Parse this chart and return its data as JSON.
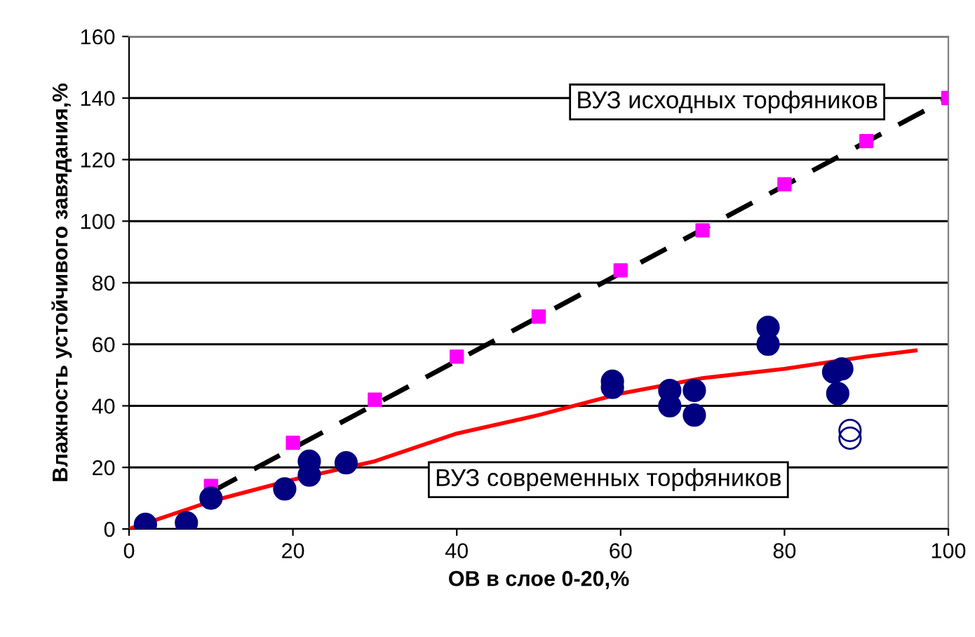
{
  "chart_data": {
    "type": "scatter",
    "xlabel": "ОВ в слое 0-20,%",
    "ylabel": "Влажность устойчивого завядания,%",
    "xlim": [
      0,
      100
    ],
    "ylim": [
      0,
      160
    ],
    "xticks": [
      0,
      20,
      40,
      60,
      80,
      100
    ],
    "yticks": [
      0,
      20,
      40,
      60,
      80,
      100,
      120,
      140,
      160
    ],
    "grid": "y",
    "annotations": [
      "ВУЗ исходных торфяников",
      "ВУЗ современных торфяников"
    ],
    "series": [
      {
        "type": "line",
        "color": "#000000",
        "line_style": "dashed",
        "marker": "none",
        "x": [
          10,
          100
        ],
        "values": [
          12,
          140
        ]
      },
      {
        "type": "line",
        "color": "#ff0000",
        "line_style": "solid",
        "marker": "none",
        "x": [
          0,
          10,
          20,
          30,
          40,
          50,
          60,
          70,
          80,
          90,
          96
        ],
        "values": [
          0,
          9,
          16,
          22,
          31,
          37,
          44,
          49,
          52,
          56,
          58
        ]
      },
      {
        "color": "#ff00ff",
        "marker": "square",
        "x": [
          10,
          20,
          30,
          40,
          50,
          60,
          70,
          80,
          90,
          100
        ],
        "values": [
          14,
          28,
          42,
          56,
          69,
          84,
          97,
          112,
          126,
          140
        ]
      },
      {
        "color": "#000080",
        "marker": "circle",
        "x": [
          2,
          7,
          10,
          19,
          22,
          22,
          26.5,
          59,
          59,
          66,
          66,
          69,
          69,
          78,
          78,
          87,
          86,
          86.5
        ],
        "values": [
          1.5,
          2,
          10,
          13,
          22,
          17.5,
          21.5,
          48,
          46,
          45,
          40,
          45,
          37,
          65.5,
          60,
          52,
          51,
          44
        ]
      },
      {
        "color": "#000080",
        "marker": "circle",
        "x": [
          88,
          88
        ],
        "values": [
          32,
          29.5
        ]
      }
    ]
  }
}
